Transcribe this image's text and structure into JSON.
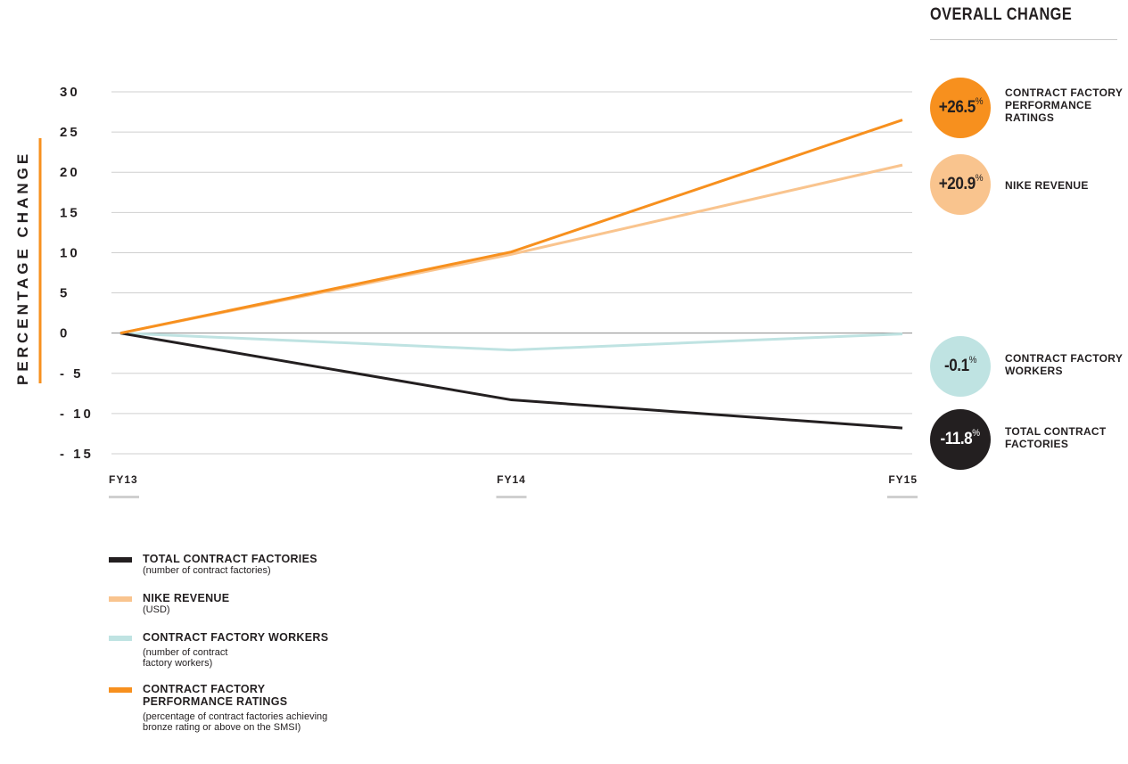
{
  "chart_data": {
    "type": "line",
    "ylabel": "PERCENTAGE CHANGE",
    "x": [
      "FY13",
      "FY14",
      "FY15"
    ],
    "y_ticks": [
      "30",
      "25",
      "20",
      "15",
      "10",
      "5",
      "0",
      "-5",
      "-10",
      "-15"
    ],
    "ylim": [
      -15,
      30
    ],
    "grid": true,
    "legend_position": "bottom-left",
    "series": [
      {
        "key": "total",
        "name": "TOTAL CONTRACT FACTORIES",
        "note": "(number of contract factories)",
        "color": "#231f20",
        "values": [
          0,
          -8.3,
          -11.8
        ]
      },
      {
        "key": "revenue",
        "name": "NIKE REVENUE",
        "note": "(USD)",
        "color": "#f9c48e",
        "values": [
          0,
          9.8,
          20.9
        ]
      },
      {
        "key": "workers",
        "name": "CONTRACT FACTORY WORKERS",
        "note": "(number of contract factory workers)",
        "color": "#bfe3e2",
        "values": [
          0,
          -2.1,
          -0.1
        ]
      },
      {
        "key": "ratings",
        "name": "CONTRACT FACTORY PERFORMANCE RATINGS",
        "note": "(percentage of contract factories achieving bronze rating or above on the SMSI)",
        "color": "#f7901e",
        "values": [
          0,
          10.1,
          26.5
        ]
      }
    ]
  },
  "overall_change": {
    "title": "OVERALL CHANGE",
    "items": [
      {
        "value": "+26.5",
        "unit": "%",
        "label": "CONTRACT FACTORY PERFORMANCE RATINGS",
        "color": "#f7901e",
        "text_color": "#231f20"
      },
      {
        "value": "+20.9",
        "unit": "%",
        "label": "NIKE REVENUE",
        "color": "#f9c48e",
        "text_color": "#231f20"
      },
      {
        "value": "-0.1",
        "unit": "%",
        "label": "CONTRACT FACTORY WORKERS",
        "color": "#bfe3e2",
        "text_color": "#231f20"
      },
      {
        "value": "-11.8",
        "unit": "%",
        "label": "TOTAL CONTRACT FACTORIES",
        "color": "#231f20",
        "text_color": "#ffffff"
      }
    ]
  },
  "legend": {
    "items": [
      {
        "name": "TOTAL CONTRACT FACTORIES",
        "note": "(number of contract factories)",
        "color": "#231f20"
      },
      {
        "name": "NIKE REVENUE",
        "note": "(USD)",
        "color": "#f9c48e"
      },
      {
        "name": "CONTRACT FACTORY WORKERS",
        "note": "(number of contract\nfactory workers)",
        "color": "#bfe3e2"
      },
      {
        "name": "CONTRACT FACTORY\nPERFORMANCE RATINGS",
        "note": "(percentage of contract factories achieving\nbronze rating or above on the SMSI)",
        "color": "#f7901e"
      }
    ]
  }
}
